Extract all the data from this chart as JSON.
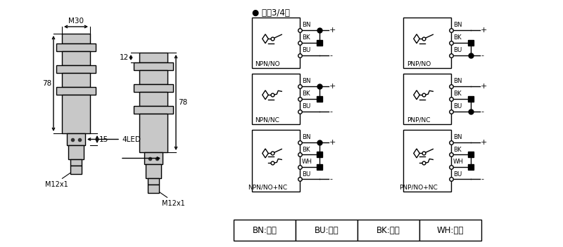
{
  "bg_color": "#ffffff",
  "dc_label": "● 直流3/4线",
  "legend_items": [
    "BN:棕色",
    "BU:兰色",
    "BK:黑色",
    "WH:白色"
  ],
  "dim_M30": "M30",
  "dim_78_left": "78",
  "dim_78_right": "78",
  "dim_12": "12",
  "dim_15": "15",
  "dim_4LED": "4LED",
  "dim_M12x1_left": "M12x1",
  "dim_M12x1_right": "M12x1",
  "gray": "#c8c8c8",
  "black": "#000000",
  "white": "#ffffff",
  "lw": 1.0
}
